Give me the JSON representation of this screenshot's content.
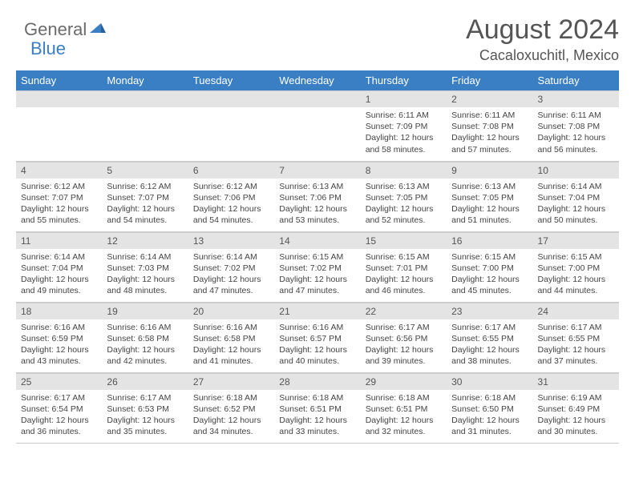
{
  "brand": {
    "part1": "General",
    "part2": "Blue"
  },
  "title": "August 2024",
  "location": "Cacaloxuchitl, Mexico",
  "colors": {
    "header_bg": "#3a7fc4",
    "header_text": "#ffffff",
    "daynum_bg": "#e4e4e4",
    "text": "#444444",
    "title_color": "#555555"
  },
  "dow": [
    "Sunday",
    "Monday",
    "Tuesday",
    "Wednesday",
    "Thursday",
    "Friday",
    "Saturday"
  ],
  "weeks": [
    [
      {
        "n": "",
        "sr": "",
        "ss": "",
        "dl": ""
      },
      {
        "n": "",
        "sr": "",
        "ss": "",
        "dl": ""
      },
      {
        "n": "",
        "sr": "",
        "ss": "",
        "dl": ""
      },
      {
        "n": "",
        "sr": "",
        "ss": "",
        "dl": ""
      },
      {
        "n": "1",
        "sr": "Sunrise: 6:11 AM",
        "ss": "Sunset: 7:09 PM",
        "dl": "Daylight: 12 hours and 58 minutes."
      },
      {
        "n": "2",
        "sr": "Sunrise: 6:11 AM",
        "ss": "Sunset: 7:08 PM",
        "dl": "Daylight: 12 hours and 57 minutes."
      },
      {
        "n": "3",
        "sr": "Sunrise: 6:11 AM",
        "ss": "Sunset: 7:08 PM",
        "dl": "Daylight: 12 hours and 56 minutes."
      }
    ],
    [
      {
        "n": "4",
        "sr": "Sunrise: 6:12 AM",
        "ss": "Sunset: 7:07 PM",
        "dl": "Daylight: 12 hours and 55 minutes."
      },
      {
        "n": "5",
        "sr": "Sunrise: 6:12 AM",
        "ss": "Sunset: 7:07 PM",
        "dl": "Daylight: 12 hours and 54 minutes."
      },
      {
        "n": "6",
        "sr": "Sunrise: 6:12 AM",
        "ss": "Sunset: 7:06 PM",
        "dl": "Daylight: 12 hours and 54 minutes."
      },
      {
        "n": "7",
        "sr": "Sunrise: 6:13 AM",
        "ss": "Sunset: 7:06 PM",
        "dl": "Daylight: 12 hours and 53 minutes."
      },
      {
        "n": "8",
        "sr": "Sunrise: 6:13 AM",
        "ss": "Sunset: 7:05 PM",
        "dl": "Daylight: 12 hours and 52 minutes."
      },
      {
        "n": "9",
        "sr": "Sunrise: 6:13 AM",
        "ss": "Sunset: 7:05 PM",
        "dl": "Daylight: 12 hours and 51 minutes."
      },
      {
        "n": "10",
        "sr": "Sunrise: 6:14 AM",
        "ss": "Sunset: 7:04 PM",
        "dl": "Daylight: 12 hours and 50 minutes."
      }
    ],
    [
      {
        "n": "11",
        "sr": "Sunrise: 6:14 AM",
        "ss": "Sunset: 7:04 PM",
        "dl": "Daylight: 12 hours and 49 minutes."
      },
      {
        "n": "12",
        "sr": "Sunrise: 6:14 AM",
        "ss": "Sunset: 7:03 PM",
        "dl": "Daylight: 12 hours and 48 minutes."
      },
      {
        "n": "13",
        "sr": "Sunrise: 6:14 AM",
        "ss": "Sunset: 7:02 PM",
        "dl": "Daylight: 12 hours and 47 minutes."
      },
      {
        "n": "14",
        "sr": "Sunrise: 6:15 AM",
        "ss": "Sunset: 7:02 PM",
        "dl": "Daylight: 12 hours and 47 minutes."
      },
      {
        "n": "15",
        "sr": "Sunrise: 6:15 AM",
        "ss": "Sunset: 7:01 PM",
        "dl": "Daylight: 12 hours and 46 minutes."
      },
      {
        "n": "16",
        "sr": "Sunrise: 6:15 AM",
        "ss": "Sunset: 7:00 PM",
        "dl": "Daylight: 12 hours and 45 minutes."
      },
      {
        "n": "17",
        "sr": "Sunrise: 6:15 AM",
        "ss": "Sunset: 7:00 PM",
        "dl": "Daylight: 12 hours and 44 minutes."
      }
    ],
    [
      {
        "n": "18",
        "sr": "Sunrise: 6:16 AM",
        "ss": "Sunset: 6:59 PM",
        "dl": "Daylight: 12 hours and 43 minutes."
      },
      {
        "n": "19",
        "sr": "Sunrise: 6:16 AM",
        "ss": "Sunset: 6:58 PM",
        "dl": "Daylight: 12 hours and 42 minutes."
      },
      {
        "n": "20",
        "sr": "Sunrise: 6:16 AM",
        "ss": "Sunset: 6:58 PM",
        "dl": "Daylight: 12 hours and 41 minutes."
      },
      {
        "n": "21",
        "sr": "Sunrise: 6:16 AM",
        "ss": "Sunset: 6:57 PM",
        "dl": "Daylight: 12 hours and 40 minutes."
      },
      {
        "n": "22",
        "sr": "Sunrise: 6:17 AM",
        "ss": "Sunset: 6:56 PM",
        "dl": "Daylight: 12 hours and 39 minutes."
      },
      {
        "n": "23",
        "sr": "Sunrise: 6:17 AM",
        "ss": "Sunset: 6:55 PM",
        "dl": "Daylight: 12 hours and 38 minutes."
      },
      {
        "n": "24",
        "sr": "Sunrise: 6:17 AM",
        "ss": "Sunset: 6:55 PM",
        "dl": "Daylight: 12 hours and 37 minutes."
      }
    ],
    [
      {
        "n": "25",
        "sr": "Sunrise: 6:17 AM",
        "ss": "Sunset: 6:54 PM",
        "dl": "Daylight: 12 hours and 36 minutes."
      },
      {
        "n": "26",
        "sr": "Sunrise: 6:17 AM",
        "ss": "Sunset: 6:53 PM",
        "dl": "Daylight: 12 hours and 35 minutes."
      },
      {
        "n": "27",
        "sr": "Sunrise: 6:18 AM",
        "ss": "Sunset: 6:52 PM",
        "dl": "Daylight: 12 hours and 34 minutes."
      },
      {
        "n": "28",
        "sr": "Sunrise: 6:18 AM",
        "ss": "Sunset: 6:51 PM",
        "dl": "Daylight: 12 hours and 33 minutes."
      },
      {
        "n": "29",
        "sr": "Sunrise: 6:18 AM",
        "ss": "Sunset: 6:51 PM",
        "dl": "Daylight: 12 hours and 32 minutes."
      },
      {
        "n": "30",
        "sr": "Sunrise: 6:18 AM",
        "ss": "Sunset: 6:50 PM",
        "dl": "Daylight: 12 hours and 31 minutes."
      },
      {
        "n": "31",
        "sr": "Sunrise: 6:19 AM",
        "ss": "Sunset: 6:49 PM",
        "dl": "Daylight: 12 hours and 30 minutes."
      }
    ]
  ]
}
